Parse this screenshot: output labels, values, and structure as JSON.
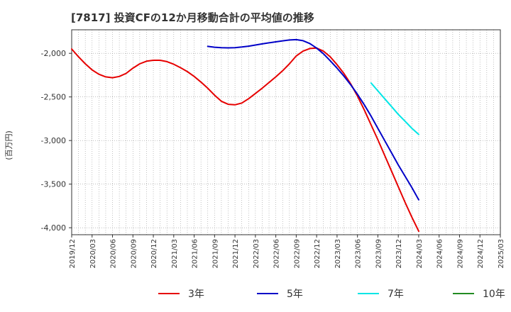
{
  "chart_data": {
    "type": "line",
    "title": "[7817]  投資CFの12か月移動合計の平均値の推移",
    "ylabel": "(百万円)",
    "xlabel": "",
    "ylim": [
      -4080,
      -1730
    ],
    "yticks": [
      -2000,
      -2500,
      -3000,
      -3500,
      -4000
    ],
    "ytick_labels": [
      "-2,000",
      "-2,500",
      "-3,000",
      "-3,500",
      "-4,000"
    ],
    "x_start": "2019/12",
    "x_end": "2025/03",
    "xtick_labels": [
      "2019/12",
      "2020/03",
      "2020/06",
      "2020/09",
      "2020/12",
      "2021/03",
      "2021/06",
      "2021/09",
      "2021/12",
      "2022/03",
      "2022/06",
      "2022/09",
      "2022/12",
      "2023/03",
      "2023/06",
      "2023/09",
      "2023/12",
      "2024/03",
      "2024/06",
      "2024/09",
      "2024/12",
      "2025/03"
    ],
    "grid": true,
    "legend_position": "bottom",
    "series": [
      {
        "name": "3年",
        "color": "#e60000",
        "x": [
          "2019/12",
          "2020/01",
          "2020/02",
          "2020/03",
          "2020/04",
          "2020/05",
          "2020/06",
          "2020/07",
          "2020/08",
          "2020/09",
          "2020/10",
          "2020/11",
          "2020/12",
          "2021/01",
          "2021/02",
          "2021/03",
          "2021/04",
          "2021/05",
          "2021/06",
          "2021/07",
          "2021/08",
          "2021/09",
          "2021/10",
          "2021/11",
          "2021/12",
          "2022/01",
          "2022/02",
          "2022/03",
          "2022/04",
          "2022/05",
          "2022/06",
          "2022/07",
          "2022/08",
          "2022/09",
          "2022/10",
          "2022/11",
          "2022/12",
          "2023/01",
          "2023/02",
          "2023/03",
          "2023/04",
          "2023/05",
          "2023/06",
          "2023/07",
          "2023/08",
          "2023/09",
          "2023/10",
          "2023/11",
          "2023/12",
          "2024/01",
          "2024/02",
          "2024/03"
        ],
        "values": [
          -1950,
          -2040,
          -2120,
          -2190,
          -2240,
          -2270,
          -2280,
          -2265,
          -2230,
          -2170,
          -2120,
          -2090,
          -2080,
          -2080,
          -2095,
          -2125,
          -2165,
          -2210,
          -2265,
          -2330,
          -2400,
          -2480,
          -2550,
          -2585,
          -2590,
          -2570,
          -2520,
          -2460,
          -2400,
          -2335,
          -2270,
          -2200,
          -2120,
          -2030,
          -1975,
          -1945,
          -1940,
          -1975,
          -2040,
          -2130,
          -2230,
          -2350,
          -2490,
          -2650,
          -2820,
          -2990,
          -3170,
          -3350,
          -3530,
          -3710,
          -3880,
          -4040
        ]
      },
      {
        "name": "5年",
        "color": "#0000c8",
        "x": [
          "2021/08",
          "2021/09",
          "2021/10",
          "2021/11",
          "2021/12",
          "2022/01",
          "2022/02",
          "2022/03",
          "2022/04",
          "2022/05",
          "2022/06",
          "2022/07",
          "2022/08",
          "2022/09",
          "2022/10",
          "2022/11",
          "2022/12",
          "2023/01",
          "2023/02",
          "2023/03",
          "2023/04",
          "2023/05",
          "2023/06",
          "2023/07",
          "2023/08",
          "2023/09",
          "2023/10",
          "2023/11",
          "2023/12",
          "2024/01",
          "2024/02",
          "2024/03"
        ],
        "values": [
          -1920,
          -1930,
          -1935,
          -1937,
          -1935,
          -1928,
          -1918,
          -1905,
          -1892,
          -1880,
          -1868,
          -1857,
          -1847,
          -1843,
          -1855,
          -1888,
          -1940,
          -2005,
          -2085,
          -2170,
          -2260,
          -2360,
          -2470,
          -2590,
          -2720,
          -2860,
          -3000,
          -3140,
          -3280,
          -3410,
          -3540,
          -3680
        ]
      },
      {
        "name": "7年",
        "color": "#00e6e6",
        "x": [
          "2023/08",
          "2023/09",
          "2023/10",
          "2023/11",
          "2023/12",
          "2024/01",
          "2024/02",
          "2024/03"
        ],
        "values": [
          -2340,
          -2430,
          -2520,
          -2610,
          -2700,
          -2780,
          -2860,
          -2930
        ]
      },
      {
        "name": "10年",
        "color": "#228b22",
        "x": [],
        "values": []
      }
    ]
  }
}
